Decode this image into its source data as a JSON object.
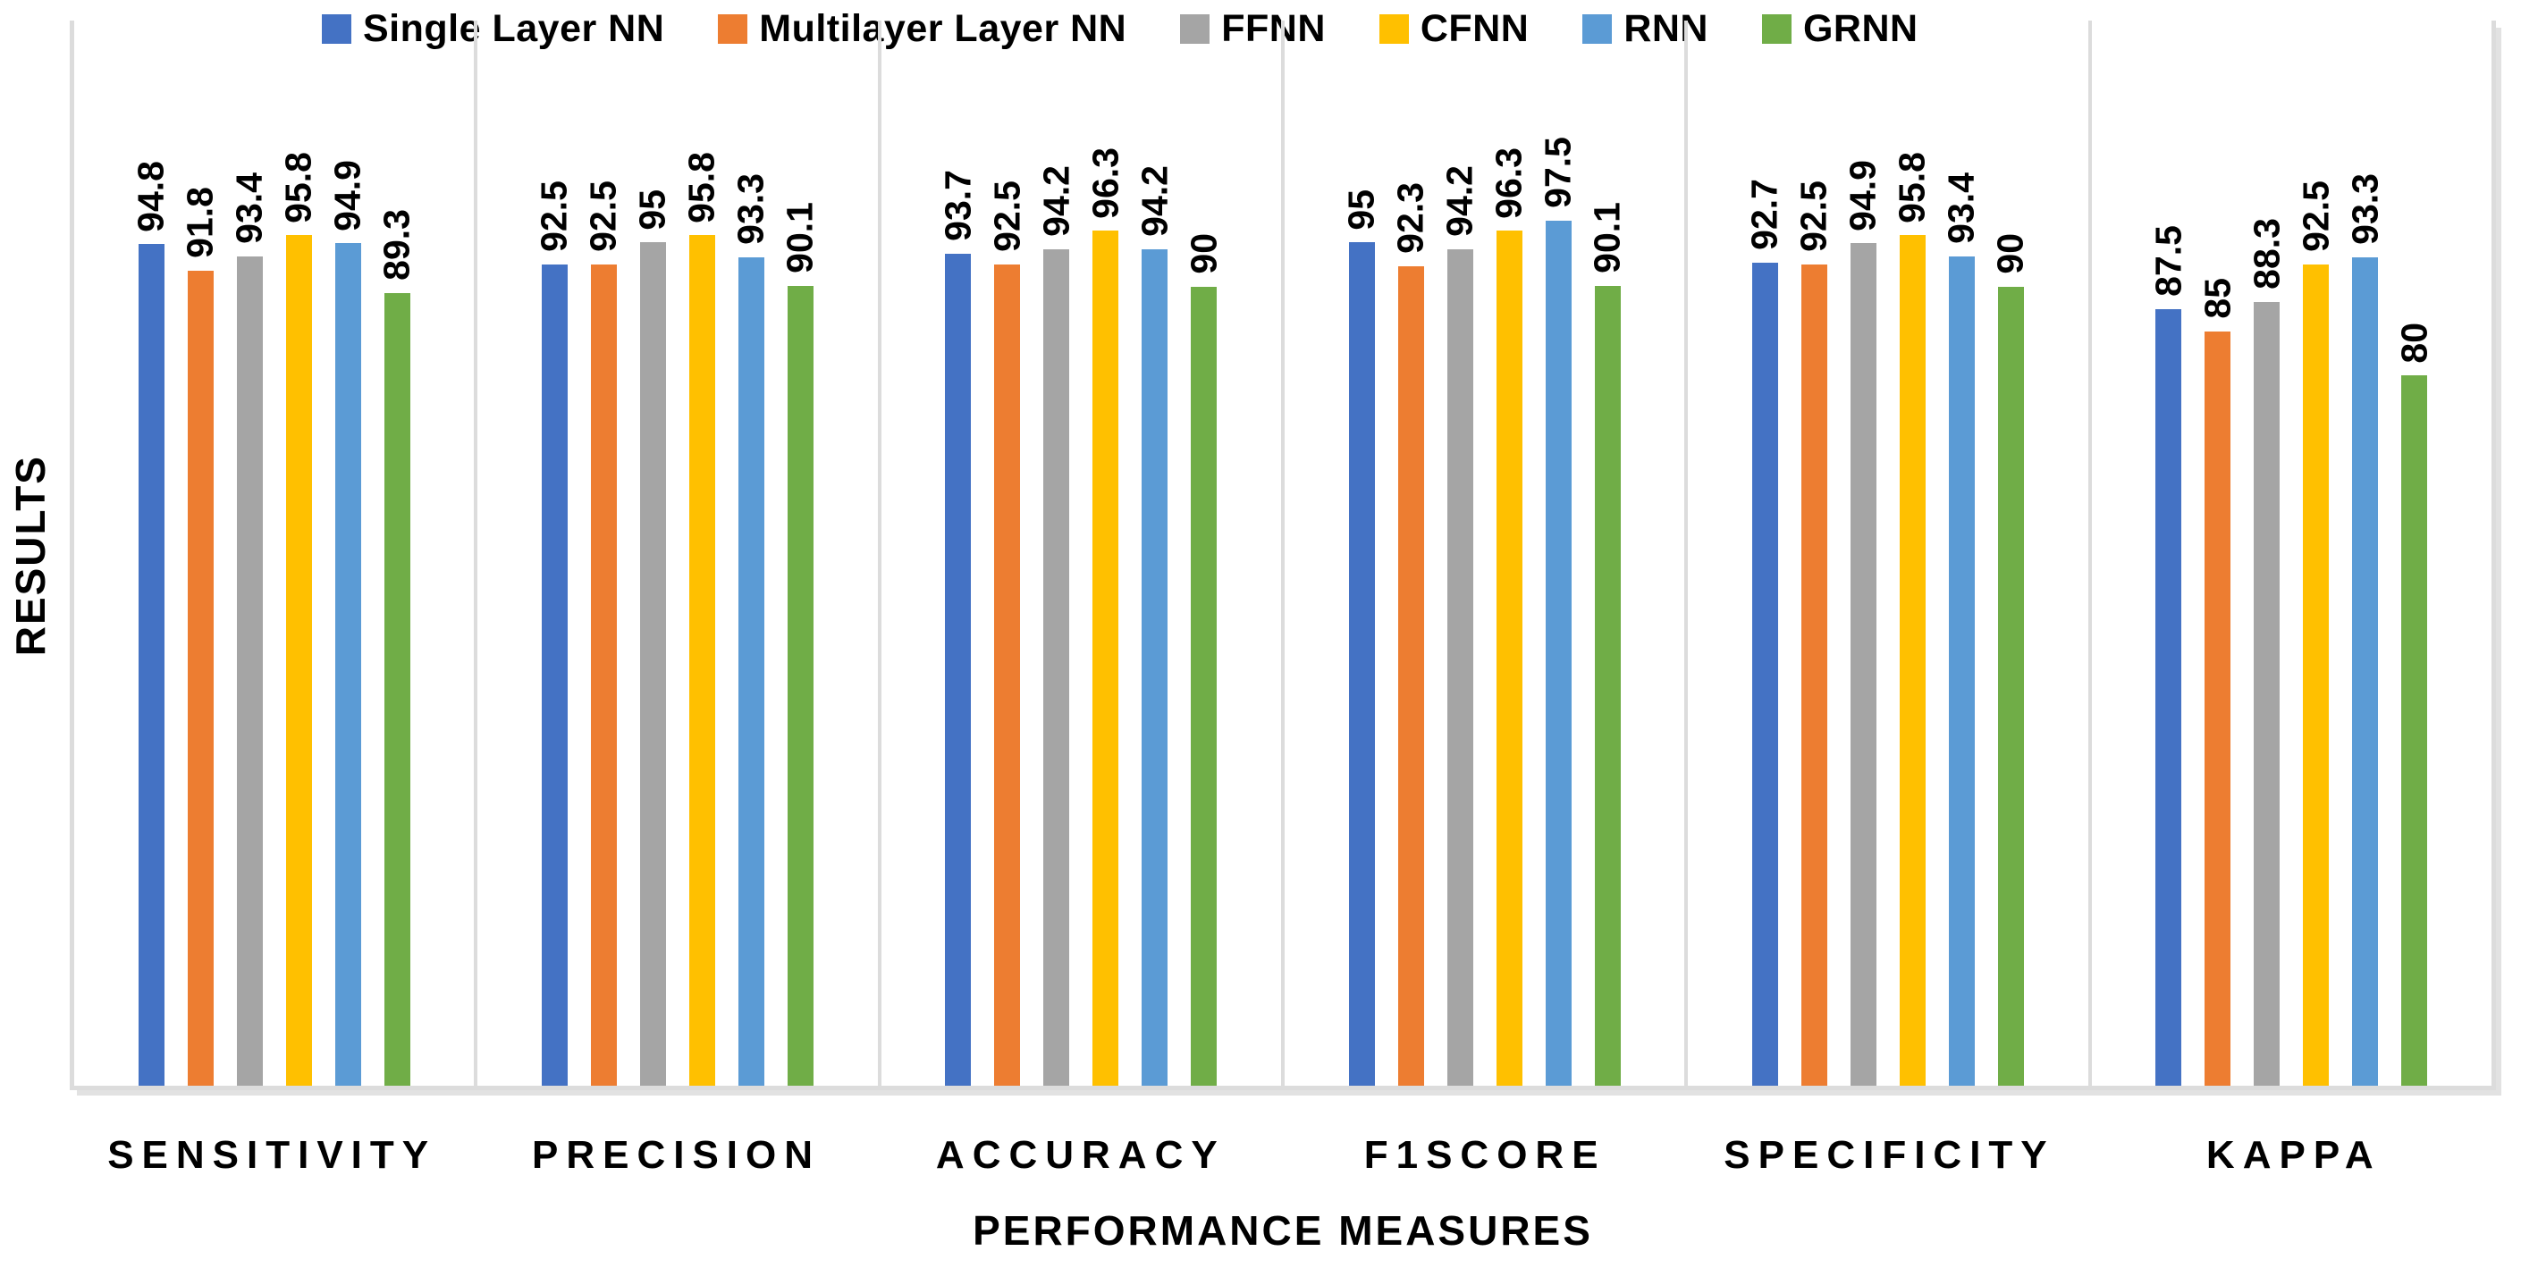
{
  "chart_data": {
    "type": "bar",
    "title": "",
    "xlabel": "PERFORMANCE MEASURES",
    "ylabel": "RESULTS",
    "categories": [
      "SENSITIVITY",
      "PRECISION",
      "ACCURACY",
      "F1SCORE",
      "SPECIFICITY",
      "KAPPA"
    ],
    "series": [
      {
        "name": "Single Layer NN",
        "color": "#4472C4",
        "values": [
          94.8,
          92.5,
          93.7,
          95,
          92.7,
          87.5
        ]
      },
      {
        "name": "Multilayer Layer NN",
        "color": "#ED7D31",
        "values": [
          91.8,
          92.5,
          92.5,
          92.3,
          92.5,
          85
        ]
      },
      {
        "name": "FFNN",
        "color": "#A5A5A5",
        "values": [
          93.4,
          95,
          94.2,
          94.2,
          94.9,
          88.3
        ]
      },
      {
        "name": "CFNN",
        "color": "#FFC000",
        "values": [
          95.8,
          95.8,
          96.3,
          96.3,
          95.8,
          92.5
        ]
      },
      {
        "name": "RNN",
        "color": "#5B9BD5",
        "values": [
          94.9,
          93.3,
          94.2,
          97.5,
          93.4,
          93.3
        ]
      },
      {
        "name": "GRNN",
        "color": "#70AD47",
        "values": [
          89.3,
          90.1,
          90,
          90.1,
          90,
          80
        ]
      }
    ],
    "ylim": [
      0,
      120
    ],
    "y_axis_ticks_visible": false,
    "gridlines": false,
    "legend_position": "top",
    "data_labels_rotation": 90,
    "axis_line_color": "#DCDCDC",
    "text_color": "#000000",
    "background_color": "#FFFFFF"
  }
}
